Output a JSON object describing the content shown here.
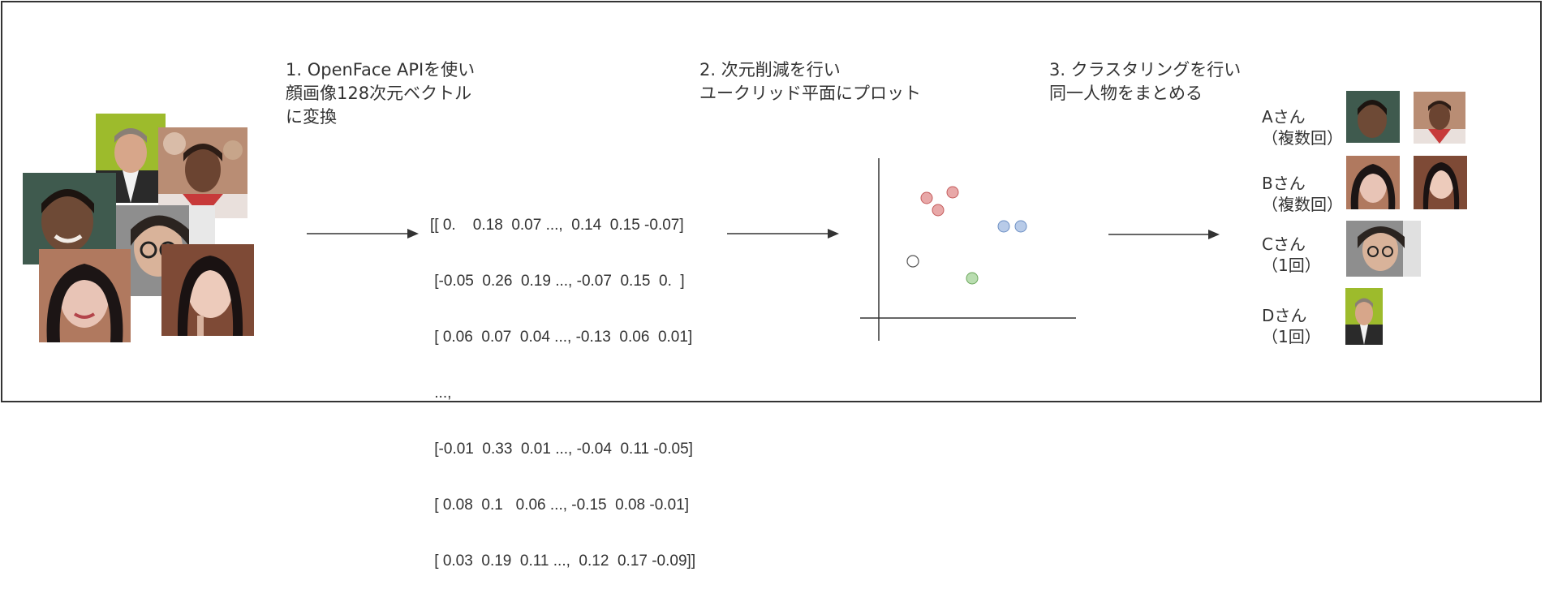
{
  "steps": [
    {
      "line1": "1. OpenFace APIを使い",
      "line2": "顔画像128次元ベクトル",
      "line3": "に変換"
    },
    {
      "line1": "2. 次元削減を行い",
      "line2": "ユークリッド平面にプロット"
    },
    {
      "line1": "3. クラスタリングを行い",
      "line2": "同一人物をまとめる"
    }
  ],
  "matrix_rows": [
    "[[ 0.    0.18  0.07 ...,  0.14  0.15 -0.07]",
    " [-0.05  0.26  0.19 ..., -0.07  0.15  0.  ]",
    " [ 0.06  0.07  0.04 ..., -0.13  0.06  0.01]",
    " ...,",
    " [-0.01  0.33  0.01 ..., -0.04  0.11 -0.05]",
    " [ 0.08  0.1   0.06 ..., -0.15  0.08 -0.01]",
    " [ 0.03  0.19  0.11 ...,  0.12  0.17 -0.09]]"
  ],
  "clusters": [
    {
      "name": "Aさん",
      "count": "（複数回）"
    },
    {
      "name": "Bさん",
      "count": "（複数回）"
    },
    {
      "name": "Cさん",
      "count": "（1回）"
    },
    {
      "name": "Dさん",
      "count": "（1回）"
    }
  ],
  "colors": {
    "red_point": "#e8a8a8",
    "blue_point": "#b8cbe8",
    "green_point": "#b9ddb0",
    "gray_point": "#ffffff",
    "arrow": "#333333"
  },
  "icons": {
    "face_photo": "face-photo-icon",
    "scatter_plot": "scatter-plot-icon",
    "arrow": "arrow-right-icon"
  }
}
